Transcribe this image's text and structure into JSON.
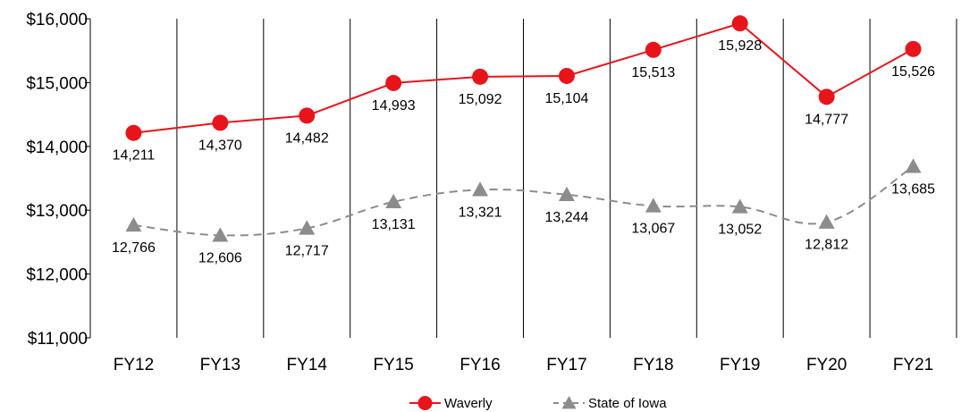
{
  "chart_data": {
    "type": "line",
    "categories": [
      "FY12",
      "FY13",
      "FY14",
      "FY15",
      "FY16",
      "FY17",
      "FY18",
      "FY19",
      "FY20",
      "FY21"
    ],
    "ylim": [
      11000,
      16000
    ],
    "y_ticks": [
      11000,
      12000,
      13000,
      14000,
      15000,
      16000
    ],
    "y_tick_labels": [
      "$11,000",
      "$12,000",
      "$13,000",
      "$14,000",
      "$15,000",
      "$16,000"
    ],
    "vertical_gridlines": true,
    "legend_position": "bottom-center",
    "series": [
      {
        "name": "Waverly",
        "color": "#e8141b",
        "marker": "circle",
        "line_style": "solid",
        "values": [
          14211,
          14370,
          14482,
          14993,
          15092,
          15104,
          15513,
          15928,
          14777,
          15526
        ],
        "labels": [
          "14,211",
          "14,370",
          "14,482",
          "14,993",
          "15,092",
          "15,104",
          "15,513",
          "15,928",
          "14,777",
          "15,526"
        ]
      },
      {
        "name": "State of Iowa",
        "color": "#8c8c8c",
        "marker": "triangle",
        "line_style": "dashed",
        "values": [
          12766,
          12606,
          12717,
          13131,
          13321,
          13244,
          13067,
          13052,
          12812,
          13685
        ],
        "labels": [
          "12,766",
          "12,606",
          "12,717",
          "13,131",
          "13,321",
          "13,244",
          "13,067",
          "13,052",
          "12,812",
          "13,685"
        ]
      }
    ]
  }
}
